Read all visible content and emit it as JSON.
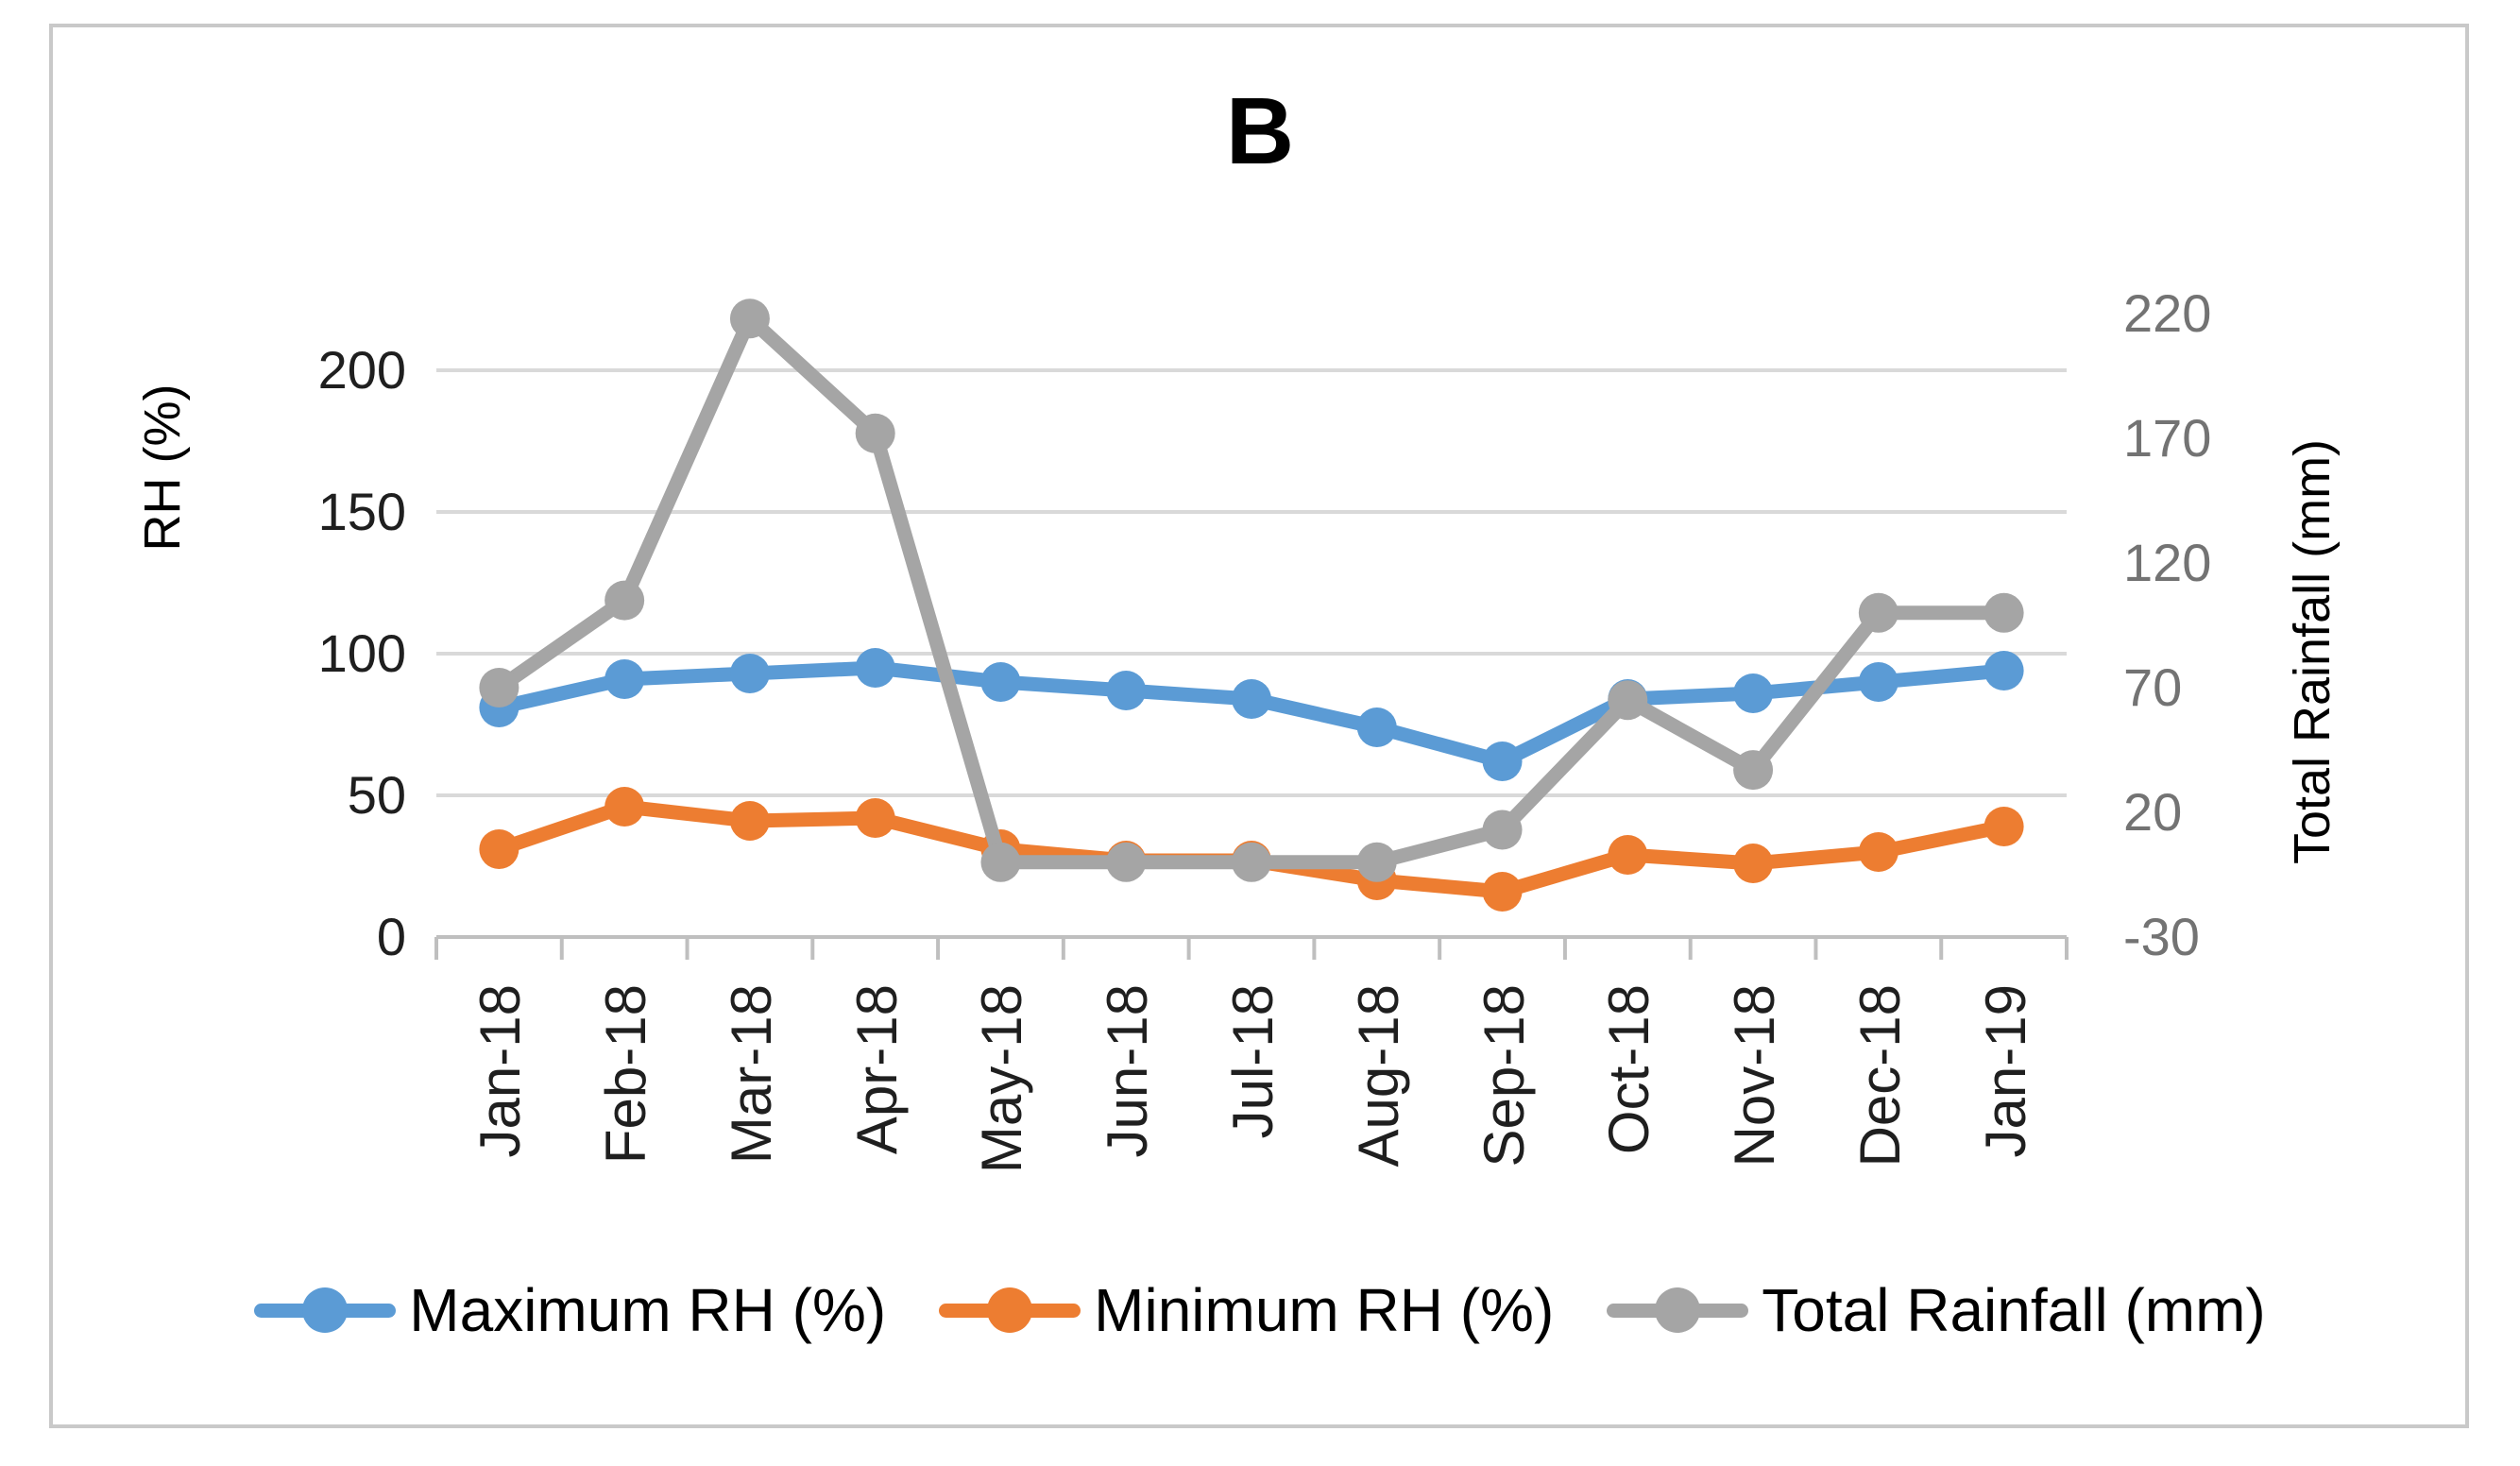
{
  "chart_data": {
    "type": "line",
    "title": "B",
    "categories": [
      "Jan-18",
      "Feb-18",
      "Mar-18",
      "Apr-18",
      "May-18",
      "Jun-18",
      "Jul-18",
      "Aug-18",
      "Sep-18",
      "Oct-18",
      "Nov-18",
      "Dec-18",
      "Jan-19"
    ],
    "series": [
      {
        "name": "Maximum RH (%)",
        "axis": "left",
        "color": "#5B9BD5",
        "values": [
          81,
          91,
          93,
          95,
          90,
          87,
          84,
          74,
          62,
          84,
          86,
          90,
          94
        ]
      },
      {
        "name": "Minimum RH (%)",
        "axis": "left",
        "color": "#ED7D31",
        "values": [
          31,
          46,
          41,
          42,
          31,
          27,
          27,
          20,
          16,
          29,
          26,
          30,
          39
        ]
      },
      {
        "name": "Total Rainfall (mm)",
        "axis": "right",
        "color": "#A5A5A5",
        "values": [
          70,
          105,
          218,
          172,
          0,
          0,
          0,
          0,
          13,
          65,
          37,
          100,
          100
        ]
      }
    ],
    "left_axis": {
      "title": "RH (%)",
      "ticks": [
        0,
        50,
        100,
        150,
        200
      ],
      "min": 0,
      "max": 220
    },
    "right_axis": {
      "title": "Total Rainfall (mm)",
      "ticks": [
        220,
        170,
        120,
        70,
        20,
        -30
      ],
      "min": -30,
      "max": 220
    },
    "grid": true,
    "legend_position": "bottom",
    "marker_style": "circle"
  },
  "colors": {
    "gridline": "#D9D9D9",
    "axis_line": "#BFBFBF",
    "frame_border": "#C9C9C9",
    "left_tick_text": "#1f1f1f",
    "right_tick_text": "#737373",
    "category_text": "#1f1f1f",
    "title_text": "#000000",
    "background": "#FFFFFF"
  }
}
